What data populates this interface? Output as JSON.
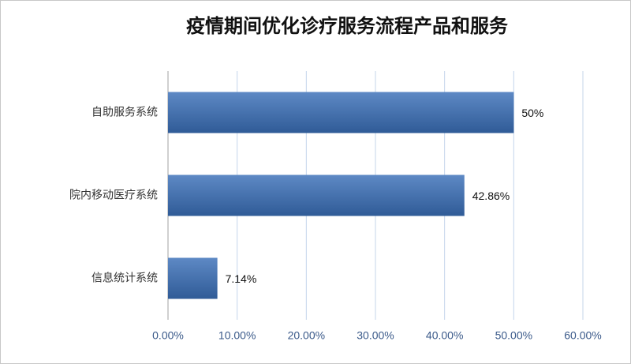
{
  "chart_data": {
    "type": "bar",
    "orientation": "horizontal",
    "title": "疫情期间优化诊疗服务流程产品和服务",
    "categories": [
      "自助服务系统",
      "院内移动医疗系统",
      "信息统计系统"
    ],
    "values": [
      50,
      42.86,
      7.14
    ],
    "value_labels": [
      "50%",
      "42.86%",
      "7.14%"
    ],
    "color": "#3a6fb8",
    "xlim": [
      0,
      60
    ],
    "xticks": [
      {
        "value": 0,
        "label": "0.00%"
      },
      {
        "value": 10,
        "label": "10.00%"
      },
      {
        "value": 20,
        "label": "20.00%"
      },
      {
        "value": 30,
        "label": "30.00%"
      },
      {
        "value": 40,
        "label": "40.00%"
      },
      {
        "value": 50,
        "label": "50.00%"
      },
      {
        "value": 60,
        "label": "60.00%"
      }
    ],
    "grid": true
  }
}
